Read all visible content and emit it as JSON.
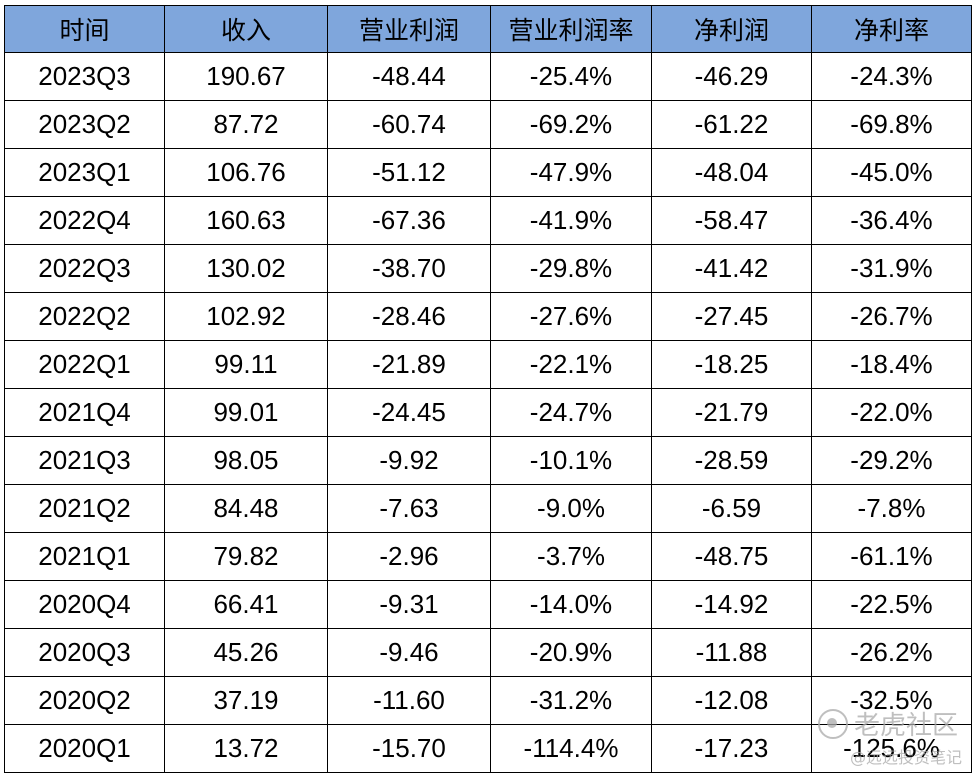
{
  "table": {
    "headers": [
      "时间",
      "收入",
      "营业利润",
      "营业利润率",
      "净利润",
      "净利率"
    ],
    "rows": [
      [
        "2023Q3",
        "190.67",
        "-48.44",
        "-25.4%",
        "-46.29",
        "-24.3%"
      ],
      [
        "2023Q2",
        "87.72",
        "-60.74",
        "-69.2%",
        "-61.22",
        "-69.8%"
      ],
      [
        "2023Q1",
        "106.76",
        "-51.12",
        "-47.9%",
        "-48.04",
        "-45.0%"
      ],
      [
        "2022Q4",
        "160.63",
        "-67.36",
        "-41.9%",
        "-58.47",
        "-36.4%"
      ],
      [
        "2022Q3",
        "130.02",
        "-38.70",
        "-29.8%",
        "-41.42",
        "-31.9%"
      ],
      [
        "2022Q2",
        "102.92",
        "-28.46",
        "-27.6%",
        "-27.45",
        "-26.7%"
      ],
      [
        "2022Q1",
        "99.11",
        "-21.89",
        "-22.1%",
        "-18.25",
        "-18.4%"
      ],
      [
        "2021Q4",
        "99.01",
        "-24.45",
        "-24.7%",
        "-21.79",
        "-22.0%"
      ],
      [
        "2021Q3",
        "98.05",
        "-9.92",
        "-10.1%",
        "-28.59",
        "-29.2%"
      ],
      [
        "2021Q2",
        "84.48",
        "-7.63",
        "-9.0%",
        "-6.59",
        "-7.8%"
      ],
      [
        "2021Q1",
        "79.82",
        "-2.96",
        "-3.7%",
        "-48.75",
        "-61.1%"
      ],
      [
        "2020Q4",
        "66.41",
        "-9.31",
        "-14.0%",
        "-14.92",
        "-22.5%"
      ],
      [
        "2020Q3",
        "45.26",
        "-9.46",
        "-20.9%",
        "-11.88",
        "-26.2%"
      ],
      [
        "2020Q2",
        "37.19",
        "-11.60",
        "-31.2%",
        "-12.08",
        "-32.5%"
      ],
      [
        "2020Q1",
        "13.72",
        "-15.70",
        "-114.4%",
        "-17.23",
        "-125.6%"
      ]
    ]
  },
  "watermark": {
    "brand": "老虎社区",
    "author": "@远远投资笔记"
  },
  "colors": {
    "header_bg": "#7fa6dc",
    "border": "#000000",
    "text": "#000000"
  }
}
